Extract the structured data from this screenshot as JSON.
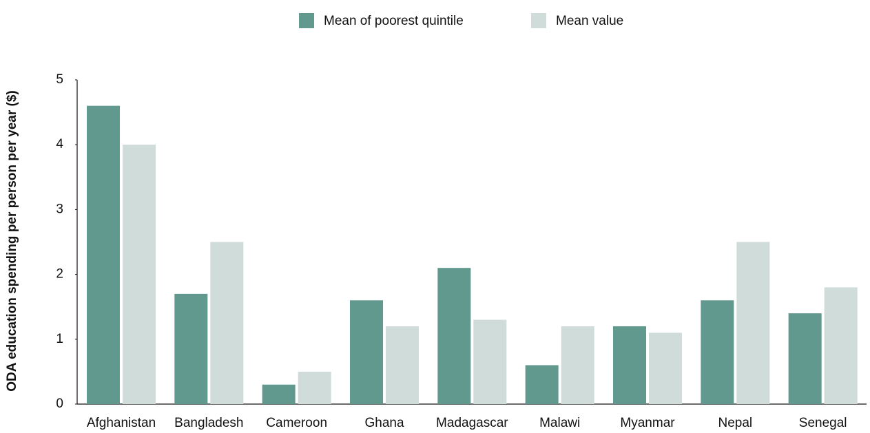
{
  "chart_data": {
    "type": "bar",
    "y_label": "ODA education spending per person per year ($)",
    "categories": [
      "Afghanistan",
      "Bangladesh",
      "Cameroon",
      "Ghana",
      "Madagascar",
      "Malawi",
      "Myanmar",
      "Nepal",
      "Senegal"
    ],
    "series": [
      {
        "name": "Mean of poorest quintile",
        "color": "#62998f",
        "values": [
          4.6,
          1.7,
          0.3,
          1.6,
          2.1,
          0.6,
          1.2,
          1.6,
          1.4
        ]
      },
      {
        "name": "Mean value",
        "color": "#cfdcd9",
        "values": [
          4.0,
          2.5,
          0.5,
          1.2,
          1.3,
          1.2,
          1.1,
          2.5,
          1.8
        ]
      }
    ],
    "ylim": [
      0,
      5
    ],
    "yticks": [
      0,
      1,
      2,
      3,
      4,
      5
    ],
    "grid": false,
    "legend": "top"
  }
}
